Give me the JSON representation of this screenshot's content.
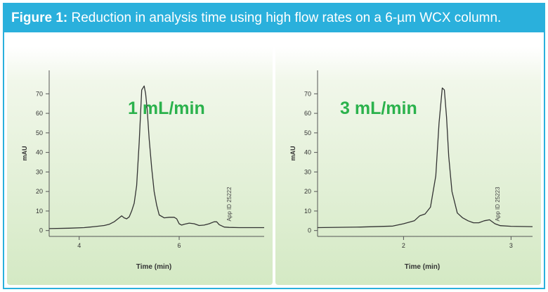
{
  "figure": {
    "label": "Figure 1:",
    "caption": " Reduction in analysis time using high flow rates on a 6-µm WCX column."
  },
  "colors": {
    "accent": "#2ab0dc",
    "annotation": "#2bb24c",
    "trace": "#333333"
  },
  "chart_data": [
    {
      "type": "line",
      "annotation": "1 mL/min",
      "ylabel": "mAU",
      "xlabel": "Time (min)",
      "watermark": "App ID 25222",
      "xlim": [
        3.4,
        7.7
      ],
      "ylim": [
        -3,
        82
      ],
      "xticks": [
        4,
        6
      ],
      "yticks": [
        0,
        10,
        20,
        30,
        40,
        50,
        60,
        70
      ],
      "series": [
        {
          "x": [
            3.4,
            3.8,
            4.1,
            4.3,
            4.5,
            4.6,
            4.7,
            4.8,
            4.85,
            4.9,
            4.95,
            5.0,
            5.05,
            5.1,
            5.15,
            5.2,
            5.25,
            5.3,
            5.33,
            5.36,
            5.4,
            5.45,
            5.5,
            5.55,
            5.6,
            5.7,
            5.8,
            5.9,
            5.95,
            6.0,
            6.05,
            6.1,
            6.2,
            6.3,
            6.4,
            6.5,
            6.6,
            6.7,
            6.75,
            6.8,
            6.9,
            7.0,
            7.2,
            7.7
          ],
          "y": [
            1,
            1.2,
            1.5,
            2,
            2.6,
            3.2,
            4.5,
            6.5,
            7.5,
            6.5,
            6,
            7,
            10,
            14,
            23,
            45,
            72,
            74,
            70,
            62,
            47,
            32,
            20,
            13,
            8,
            6.5,
            6.8,
            6.8,
            6,
            3.5,
            2.8,
            3.2,
            3.8,
            3.5,
            2.6,
            2.8,
            3.5,
            4.5,
            4.5,
            3,
            1.8,
            1.6,
            1.5,
            1.5
          ]
        }
      ]
    },
    {
      "type": "line",
      "annotation": "3 mL/min",
      "ylabel": "mAU",
      "xlabel": "Time (min)",
      "watermark": "App ID 25223",
      "xlim": [
        1.2,
        3.2
      ],
      "ylim": [
        -3,
        82
      ],
      "xticks": [
        2,
        3
      ],
      "yticks": [
        0,
        10,
        20,
        30,
        40,
        50,
        60,
        70
      ],
      "series": [
        {
          "x": [
            1.2,
            1.6,
            1.9,
            2.0,
            2.1,
            2.15,
            2.2,
            2.25,
            2.3,
            2.33,
            2.36,
            2.38,
            2.4,
            2.42,
            2.45,
            2.5,
            2.55,
            2.6,
            2.65,
            2.7,
            2.75,
            2.8,
            2.85,
            2.9,
            3.0,
            3.2
          ],
          "y": [
            1.5,
            1.8,
            2.3,
            3.5,
            5,
            7.5,
            8.5,
            12,
            28,
            55,
            73,
            72,
            58,
            38,
            20,
            9,
            6.5,
            5,
            4,
            4,
            5,
            5.5,
            3.5,
            2.5,
            2.2,
            2
          ]
        }
      ]
    }
  ]
}
